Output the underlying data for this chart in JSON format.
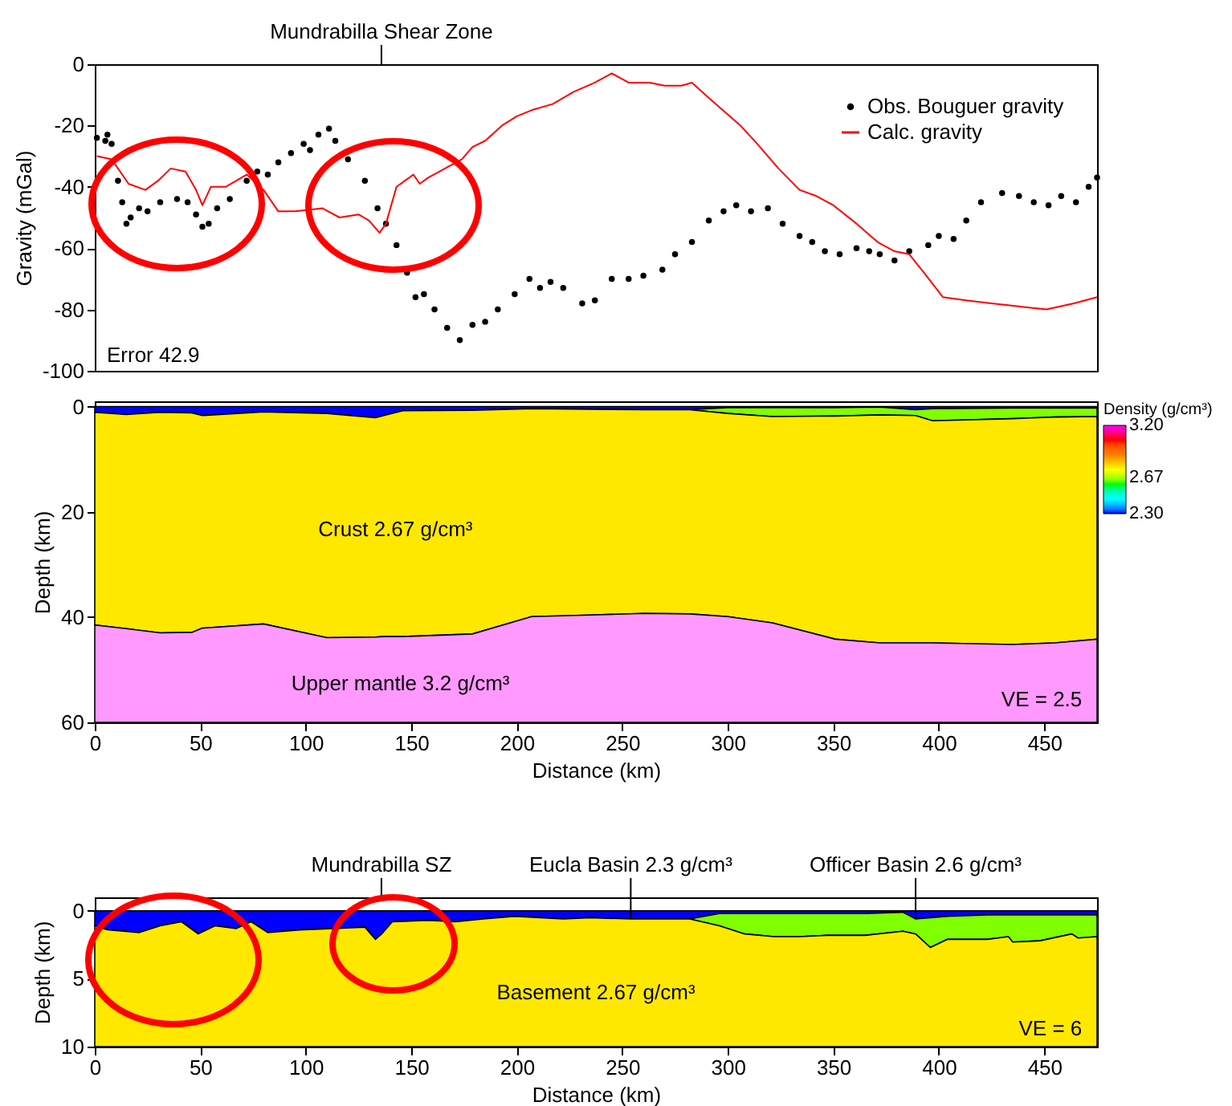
{
  "chart_data": [
    {
      "type": "line",
      "ylabel": "Gravity (mGal)",
      "xlim": [
        0,
        475
      ],
      "ylim": [
        -100,
        0
      ],
      "yticks": [
        -100,
        -80,
        -60,
        -40,
        -20,
        0
      ],
      "tick_labels": "y",
      "legend": "top right",
      "annotations": [
        "Mundrabilla Shear Zone",
        "Error 42.9"
      ],
      "series": [
        {
          "name": "Obs. Bouguer gravity",
          "type": "scatter",
          "marker": "circle",
          "color": "#000000",
          "x": [
            1,
            5,
            6,
            8,
            11,
            13,
            15,
            17,
            21,
            25,
            31,
            39,
            44,
            48,
            51,
            54,
            58,
            64,
            72,
            77,
            82,
            87,
            93,
            99,
            102,
            106,
            111,
            114,
            120,
            128,
            134,
            138,
            143,
            148,
            152,
            156,
            161,
            167,
            173,
            179,
            185,
            191,
            199,
            206,
            211,
            216,
            222,
            231,
            237,
            245,
            253,
            260,
            269,
            275,
            283,
            291,
            298,
            304,
            311,
            319,
            326,
            334,
            340,
            346,
            353,
            361,
            367,
            372,
            379,
            386,
            395,
            400,
            407,
            413,
            420,
            430,
            438,
            445,
            452,
            458,
            465,
            471,
            475
          ],
          "values": [
            -24,
            -25,
            -23,
            -26,
            -38,
            -45,
            -52,
            -50,
            -47,
            -48,
            -45,
            -44,
            -45,
            -49,
            -53,
            -52,
            -47,
            -44,
            -38,
            -35,
            -36,
            -32,
            -29,
            -26,
            -28,
            -23,
            -21,
            -25,
            -31,
            -38,
            -47,
            -52,
            -59,
            -68,
            -76,
            -75,
            -80,
            -86,
            -90,
            -85,
            -84,
            -80,
            -75,
            -70,
            -73,
            -71,
            -73,
            -78,
            -77,
            -70,
            -70,
            -69,
            -67,
            -62,
            -58,
            -51,
            -48,
            -46,
            -48,
            -47,
            -52,
            -56,
            -58,
            -61,
            -62,
            -60,
            -61,
            -62,
            -64,
            -61,
            -59,
            -56,
            -57,
            -51,
            -45,
            -42,
            -43,
            -45,
            -46,
            -43,
            -45,
            -40,
            -37
          ]
        },
        {
          "name": "Calc. gravity",
          "type": "line",
          "color": "#ff0000",
          "x": [
            1,
            8,
            16,
            24,
            30,
            36,
            43,
            48,
            51,
            55,
            62,
            72,
            80,
            87,
            95,
            108,
            116,
            125,
            130,
            135,
            138,
            143,
            147,
            151,
            154,
            158,
            166,
            174,
            179,
            185,
            193,
            200,
            207,
            217,
            227,
            237,
            245,
            253,
            263,
            270,
            278,
            283,
            291,
            306,
            314,
            324,
            334,
            342,
            350,
            361,
            371,
            379,
            386,
            393,
            402,
            413,
            425,
            438,
            451,
            464,
            475
          ],
          "values": [
            -30,
            -31,
            -39,
            -41,
            -38,
            -34,
            -35,
            -41,
            -46,
            -40,
            -40,
            -36,
            -41,
            -48,
            -48,
            -47,
            -50,
            -49,
            -51,
            -55,
            -52,
            -40,
            -38,
            -36,
            -39,
            -37,
            -34,
            -31,
            -27,
            -25,
            -20,
            -17,
            -15,
            -13,
            -9,
            -6,
            -3,
            -6,
            -6,
            -7,
            -7,
            -6,
            -11,
            -20,
            -26,
            -34,
            -41,
            -43,
            -46,
            -52,
            -58,
            -61,
            -62,
            -68,
            -76,
            -77,
            -78,
            -79,
            -80,
            -78,
            -76
          ]
        }
      ]
    },
    {
      "type": "area",
      "stacked": true,
      "xlabel": "Distance (km)",
      "ylabel": "Depth (km)",
      "xlim": [
        0,
        475
      ],
      "xticks": [
        0,
        50,
        100,
        150,
        200,
        250,
        300,
        350,
        400,
        450
      ],
      "ylim": [
        60,
        -1
      ],
      "yticks": [
        0,
        20,
        40,
        60
      ],
      "clabel": "Density (g/cm³)",
      "clim": [
        2.3,
        3.2
      ],
      "cticks": [
        {
          "value": 2.3,
          "label": "2.30"
        },
        2.67,
        {
          "value": 3.2,
          "label": "3.20"
        }
      ],
      "annotations": [
        "Crust 2.67 g/cm³",
        "Upper mantle 3.2 g/cm³",
        "VE = 2.5"
      ],
      "x": [
        0,
        15,
        31,
        46,
        51,
        80,
        110,
        133,
        137,
        146,
        179,
        207,
        235,
        260,
        282,
        300,
        321,
        351,
        372,
        389,
        397,
        435,
        455,
        475
      ],
      "series": [
        {
          "color": "#0000ff",
          "values": [
            1.1,
            1.5,
            1.1,
            1.2,
            1.7,
            1.0,
            1.3,
            2.1,
            1.7,
            0.8,
            0.7,
            0.4,
            0.5,
            0.6,
            0.6,
            0.2,
            0.2,
            0.2,
            0.1,
            0.6,
            0.4,
            0.3,
            0.3,
            0.3
          ]
        },
        {
          "color": "#80ff00",
          "values": [
            0,
            0,
            0,
            0,
            0,
            0,
            0,
            0,
            0,
            0,
            0,
            0,
            0,
            0,
            0,
            1.1,
            1.7,
            1.6,
            1.5,
            1.1,
            2.3,
            2.0,
            1.7,
            1.6
          ]
        },
        {
          "color": "#ffe800",
          "values": [
            40.4,
            40.7,
            41.9,
            41.7,
            40.4,
            40.3,
            42.6,
            41.7,
            42.0,
            42.9,
            42.5,
            39.5,
            39.1,
            38.7,
            38.8,
            38.6,
            39.2,
            42.4,
            43.3,
            43.2,
            42.2,
            42.9,
            42.9,
            42.3
          ]
        },
        {
          "color": "#ff99ff",
          "values": [
            18.5,
            17.8,
            17.0,
            17.1,
            17.9,
            18.7,
            16.1,
            16.2,
            16.3,
            16.3,
            16.8,
            20.1,
            20.4,
            20.7,
            20.6,
            20.1,
            18.9,
            15.8,
            15.1,
            15.1,
            15.1,
            14.8,
            15.1,
            15.8
          ]
        }
      ]
    },
    {
      "type": "area",
      "stacked": true,
      "xlabel": "Distance (km)",
      "ylabel": "Depth (km)",
      "xlim": [
        0,
        475
      ],
      "xticks": [
        0,
        50,
        100,
        150,
        200,
        250,
        300,
        350,
        400,
        450
      ],
      "ylim": [
        10,
        -1
      ],
      "yticks": [
        0,
        5,
        10
      ],
      "annotations": [
        "Mundrabilla SZ",
        {
          "text": "Eucla Basin 2.3 g/cm³",
          "x": 254,
          "y": 0.6
        },
        {
          "text": "Officer Basin 2.6 g/cm³",
          "x": 389,
          "y": 0.6
        },
        "Basement 2.67 g/cm³",
        "VE = 6"
      ],
      "x": [
        0,
        6,
        21,
        31,
        41,
        49,
        57,
        67,
        74,
        82,
        97,
        113,
        128,
        133,
        136,
        141,
        158,
        171,
        184,
        199,
        222,
        235,
        254,
        271,
        282,
        296,
        308,
        322,
        334,
        347,
        365,
        383,
        389,
        396,
        404,
        423,
        433,
        435,
        448,
        463,
        466,
        475
      ],
      "series": [
        {
          "color": "#0000ff",
          "values": [
            1.1,
            1.4,
            1.6,
            1.1,
            0.8,
            1.7,
            1.1,
            1.3,
            0.8,
            1.6,
            1.4,
            1.3,
            1.2,
            2.1,
            1.7,
            0.8,
            0.7,
            0.8,
            0.6,
            0.4,
            0.6,
            0.5,
            0.6,
            0.6,
            0.6,
            0.2,
            0.2,
            0.2,
            0.2,
            0.2,
            0.2,
            0.1,
            0.6,
            0.5,
            0.4,
            0.3,
            0.3,
            0.3,
            0.3,
            0.3,
            0.3,
            0.3
          ]
        },
        {
          "color": "#80ff00",
          "values": [
            0,
            0,
            0,
            0,
            0,
            0,
            0,
            0,
            0,
            0,
            0,
            0,
            0,
            0,
            0,
            0,
            0,
            0,
            0,
            0,
            0,
            0,
            0,
            0,
            0,
            0.9,
            1.5,
            1.7,
            1.7,
            1.6,
            1.6,
            1.4,
            1.1,
            2.2,
            1.7,
            1.8,
            1.6,
            2.0,
            1.9,
            1.4,
            1.7,
            1.6
          ]
        },
        {
          "color": "#ffe800",
          "values": [
            8.9,
            8.6,
            8.4,
            8.9,
            9.2,
            8.3,
            8.9,
            8.7,
            9.2,
            8.4,
            8.6,
            8.7,
            8.8,
            7.9,
            8.3,
            9.2,
            9.3,
            9.2,
            9.4,
            9.6,
            9.4,
            9.5,
            9.4,
            9.4,
            9.4,
            8.9,
            8.3,
            8.1,
            8.1,
            8.2,
            8.2,
            8.5,
            8.3,
            7.3,
            7.9,
            7.9,
            8.1,
            7.7,
            7.8,
            8.3,
            8.0,
            8.1
          ]
        }
      ]
    }
  ]
}
